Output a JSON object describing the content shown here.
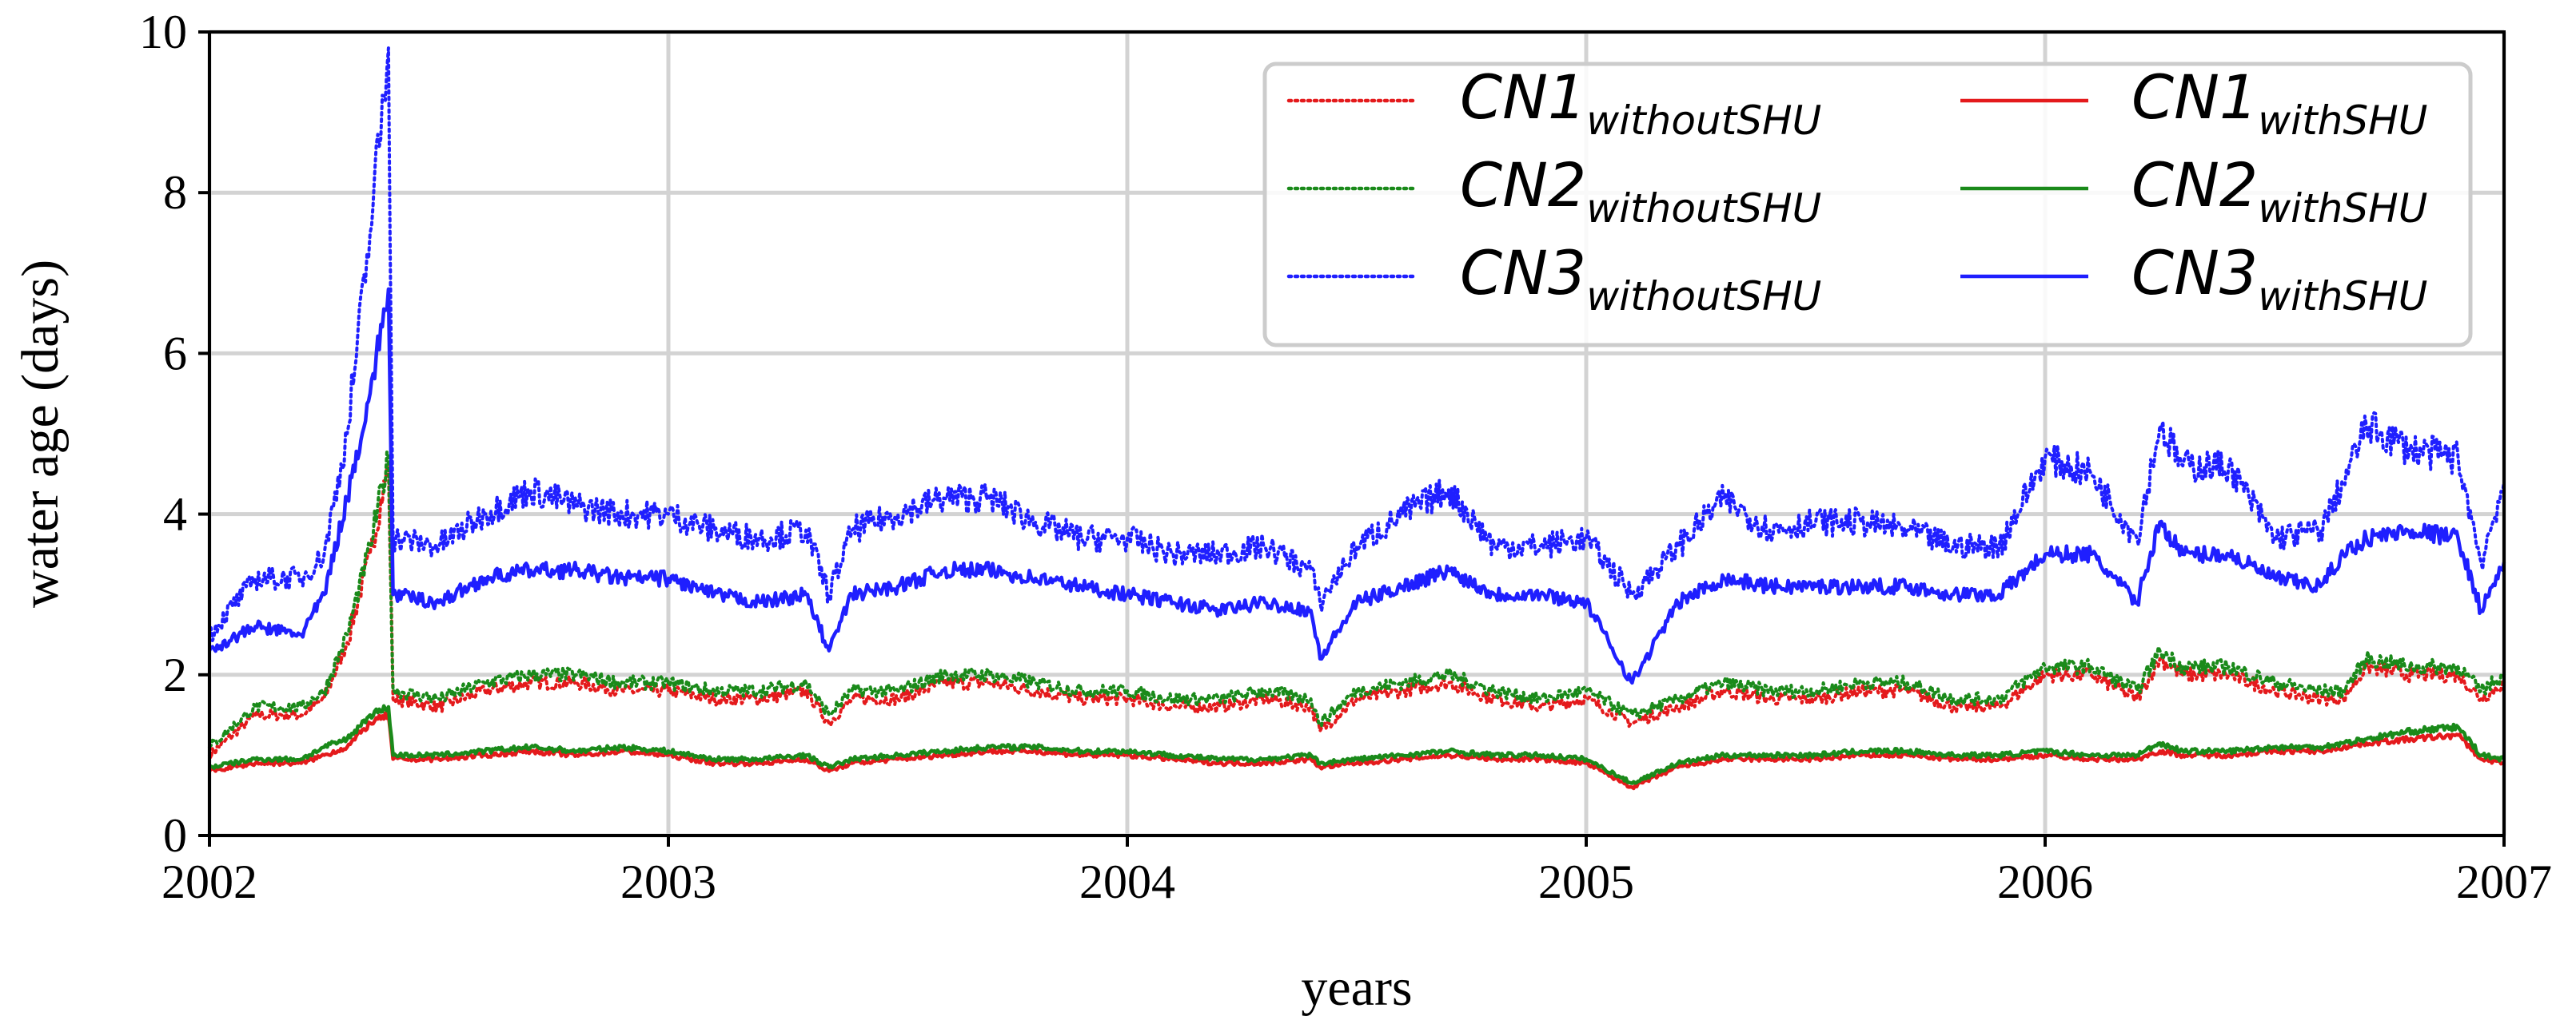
{
  "chart_data": {
    "type": "line",
    "title": "",
    "xlabel": "years",
    "ylabel": "water age (days)",
    "xlim": [
      2002,
      2007
    ],
    "ylim": [
      0,
      10
    ],
    "xticks": [
      "2002",
      "2003",
      "2004",
      "2005",
      "2006",
      "2007"
    ],
    "yticks": [
      "0",
      "2",
      "4",
      "6",
      "8",
      "10"
    ],
    "grid": true,
    "legend_position": "top-right",
    "x": [
      2002.0,
      2002.1,
      2002.2,
      2002.25,
      2002.3,
      2002.35,
      2002.39,
      2002.4,
      2002.5,
      2002.6,
      2002.7,
      2002.8,
      2002.9,
      2003.0,
      2003.1,
      2003.2,
      2003.3,
      2003.35,
      2003.4,
      2003.5,
      2003.6,
      2003.7,
      2003.8,
      2003.9,
      2004.0,
      2004.1,
      2004.2,
      2004.3,
      2004.4,
      2004.42,
      2004.5,
      2004.6,
      2004.7,
      2004.8,
      2004.9,
      2005.0,
      2005.1,
      2005.2,
      2005.3,
      2005.4,
      2005.5,
      2005.6,
      2005.7,
      2005.8,
      2005.9,
      2006.0,
      2006.1,
      2006.2,
      2006.25,
      2006.3,
      2006.4,
      2006.5,
      2006.6,
      2006.65,
      2006.7,
      2006.8,
      2006.9,
      2006.95,
      2007.0
    ],
    "series": [
      {
        "name": "CN1",
        "name_sub": "withoutSHU",
        "color": "#e41a1c",
        "style": "dotted",
        "values": [
          1.0,
          1.5,
          1.5,
          1.7,
          2.4,
          3.5,
          4.6,
          1.7,
          1.6,
          1.8,
          1.9,
          1.9,
          1.8,
          1.8,
          1.7,
          1.7,
          1.8,
          1.4,
          1.7,
          1.7,
          1.9,
          1.9,
          1.8,
          1.7,
          1.7,
          1.6,
          1.6,
          1.7,
          1.6,
          1.3,
          1.7,
          1.8,
          1.9,
          1.7,
          1.6,
          1.7,
          1.4,
          1.6,
          1.8,
          1.7,
          1.7,
          1.8,
          1.8,
          1.6,
          1.6,
          2.0,
          2.0,
          1.7,
          2.2,
          2.0,
          2.0,
          1.8,
          1.7,
          1.7,
          2.1,
          2.0,
          2.0,
          1.7,
          1.9
        ]
      },
      {
        "name": "CN2",
        "name_sub": "withoutSHU",
        "color": "#1a8a1a",
        "style": "dotted",
        "values": [
          1.1,
          1.6,
          1.6,
          1.8,
          2.5,
          3.6,
          4.7,
          1.8,
          1.7,
          1.9,
          2.0,
          2.0,
          1.9,
          1.9,
          1.8,
          1.8,
          1.9,
          1.5,
          1.8,
          1.8,
          2.0,
          2.0,
          1.9,
          1.8,
          1.8,
          1.7,
          1.7,
          1.8,
          1.7,
          1.4,
          1.8,
          1.9,
          2.0,
          1.8,
          1.7,
          1.8,
          1.5,
          1.7,
          1.9,
          1.8,
          1.8,
          1.9,
          1.9,
          1.7,
          1.7,
          2.1,
          2.1,
          1.8,
          2.3,
          2.1,
          2.1,
          1.9,
          1.8,
          1.8,
          2.2,
          2.1,
          2.1,
          1.8,
          2.0
        ]
      },
      {
        "name": "CN3",
        "name_sub": "withoutSHU",
        "color": "#1f1fff",
        "style": "dotted",
        "values": [
          2.5,
          3.2,
          3.2,
          3.5,
          5.0,
          7.5,
          9.8,
          3.7,
          3.6,
          4.0,
          4.3,
          4.1,
          4.0,
          4.0,
          3.8,
          3.7,
          3.8,
          3.0,
          3.8,
          4.0,
          4.2,
          4.2,
          3.9,
          3.7,
          3.7,
          3.5,
          3.5,
          3.6,
          3.3,
          2.9,
          3.6,
          4.0,
          4.3,
          3.6,
          3.6,
          3.7,
          3.0,
          3.6,
          4.2,
          3.8,
          3.9,
          3.9,
          3.8,
          3.6,
          3.6,
          4.7,
          4.5,
          3.7,
          5.1,
          4.6,
          4.6,
          3.7,
          3.8,
          4.4,
          5.1,
          4.8,
          4.7,
          3.4,
          4.4
        ]
      },
      {
        "name": "CN1",
        "name_sub": "withSHU",
        "color": "#e41a1c",
        "style": "solid",
        "values": [
          0.8,
          0.9,
          0.9,
          1.0,
          1.1,
          1.4,
          1.5,
          0.95,
          0.95,
          1.0,
          1.05,
          1.0,
          1.05,
          1.0,
          0.9,
          0.9,
          0.95,
          0.8,
          0.9,
          0.95,
          1.0,
          1.05,
          1.05,
          1.0,
          1.0,
          0.95,
          0.9,
          0.9,
          0.95,
          0.85,
          0.9,
          0.95,
          1.0,
          0.95,
          0.95,
          0.9,
          0.6,
          0.85,
          0.95,
          0.95,
          0.95,
          1.0,
          1.0,
          0.95,
          0.95,
          1.0,
          0.95,
          0.95,
          1.05,
          1.0,
          1.0,
          1.05,
          1.05,
          1.1,
          1.15,
          1.2,
          1.25,
          0.95,
          0.9
        ]
      },
      {
        "name": "CN2",
        "name_sub": "withSHU",
        "color": "#1a8a1a",
        "style": "solid",
        "values": [
          0.85,
          0.95,
          0.95,
          1.1,
          1.2,
          1.5,
          1.6,
          1.0,
          1.0,
          1.05,
          1.1,
          1.05,
          1.1,
          1.05,
          0.95,
          0.95,
          1.0,
          0.85,
          0.95,
          1.0,
          1.05,
          1.1,
          1.1,
          1.05,
          1.05,
          1.0,
          0.95,
          0.95,
          1.0,
          0.9,
          0.95,
          1.0,
          1.05,
          1.0,
          1.0,
          0.95,
          0.65,
          0.9,
          1.0,
          1.0,
          1.0,
          1.05,
          1.05,
          1.0,
          1.0,
          1.05,
          1.0,
          1.0,
          1.15,
          1.05,
          1.05,
          1.1,
          1.1,
          1.15,
          1.2,
          1.3,
          1.35,
          1.0,
          0.95
        ]
      },
      {
        "name": "CN3",
        "name_sub": "withSHU",
        "color": "#1f1fff",
        "style": "solid",
        "values": [
          2.3,
          2.6,
          2.5,
          3.0,
          4.2,
          5.5,
          6.8,
          3.0,
          2.9,
          3.2,
          3.3,
          3.3,
          3.2,
          3.2,
          3.0,
          2.9,
          3.0,
          2.3,
          3.0,
          3.1,
          3.3,
          3.3,
          3.2,
          3.1,
          3.0,
          2.9,
          2.8,
          2.9,
          2.8,
          2.2,
          2.9,
          3.1,
          3.3,
          3.0,
          3.0,
          2.9,
          1.9,
          2.9,
          3.2,
          3.1,
          3.1,
          3.1,
          3.1,
          3.0,
          3.0,
          3.5,
          3.5,
          2.9,
          3.9,
          3.5,
          3.5,
          3.2,
          3.1,
          3.5,
          3.7,
          3.8,
          3.7,
          2.8,
          3.4
        ]
      }
    ]
  }
}
